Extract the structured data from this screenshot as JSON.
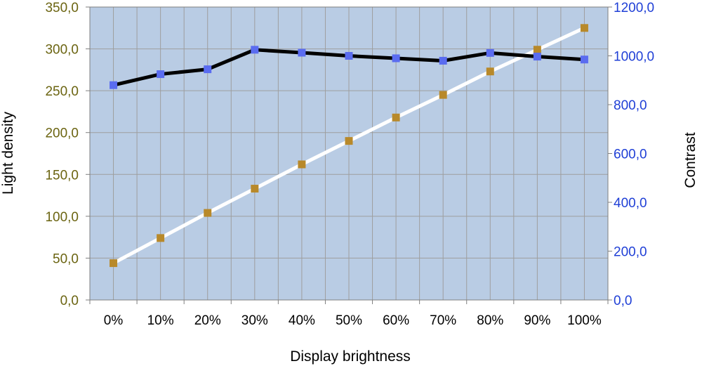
{
  "chart_data": {
    "type": "line",
    "xlabel": "Display brightness",
    "categories": [
      "0%",
      "10%",
      "20%",
      "30%",
      "40%",
      "50%",
      "60%",
      "70%",
      "80%",
      "90%",
      "100%"
    ],
    "y_left": {
      "label": "Light density",
      "range": [
        0,
        350
      ],
      "ticks": [
        "0,0",
        "50,0",
        "100,0",
        "150,0",
        "200,0",
        "250,0",
        "300,0",
        "350,0"
      ],
      "tick_color": "#6b6411"
    },
    "y_right": {
      "label": "Contrast",
      "range": [
        0,
        1200
      ],
      "ticks": [
        "0,0",
        "200,0",
        "400,0",
        "600,0",
        "800,0",
        "1000,0",
        "1200,0"
      ],
      "tick_color": "#1f3fd6"
    },
    "series": [
      {
        "axis": "left",
        "line_color": "#ffffff",
        "marker_color": "#b8892a",
        "values": [
          44,
          74,
          104,
          133,
          162,
          190,
          218,
          245,
          273,
          299,
          325
        ]
      },
      {
        "axis": "right",
        "line_color": "#000000",
        "marker_color": "#5a6cf0",
        "values": [
          880,
          925,
          945,
          1025,
          1013,
          1000,
          990,
          980,
          1012,
          997,
          985
        ]
      }
    ],
    "plot_background": "#b9cce4",
    "grid": true,
    "grid_color": "#9e9e9e",
    "legend": "none"
  }
}
